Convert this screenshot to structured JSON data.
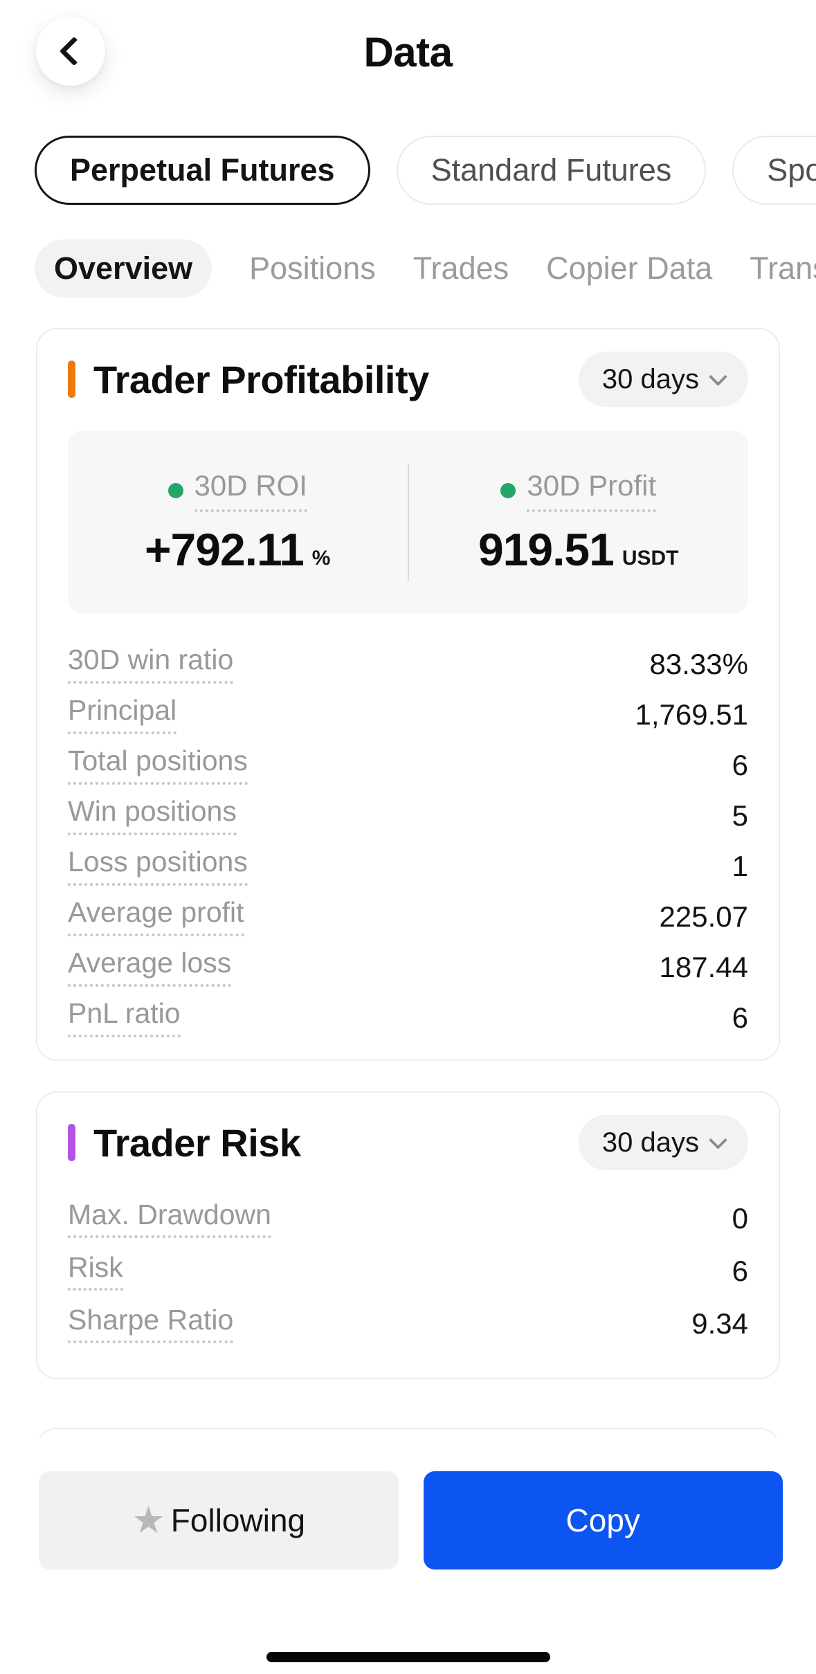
{
  "header": {
    "title": "Data"
  },
  "market_tabs": [
    {
      "label": "Perpetual Futures",
      "selected": true
    },
    {
      "label": "Standard Futures",
      "selected": false
    },
    {
      "label": "Spot Copy",
      "selected": false
    }
  ],
  "nav_tabs": [
    {
      "label": "Overview",
      "selected": true
    },
    {
      "label": "Positions",
      "selected": false
    },
    {
      "label": "Trades",
      "selected": false
    },
    {
      "label": "Copier Data",
      "selected": false
    },
    {
      "label": "Transfer",
      "selected": false
    }
  ],
  "profitability_card": {
    "title": "Trader Profitability",
    "period": "30 days",
    "accent_color": "#ED7A0E",
    "highlights": [
      {
        "label": "30D ROI",
        "value": "+792.11",
        "unit": "%"
      },
      {
        "label": "30D Profit",
        "value": "919.51",
        "unit": "USDT"
      }
    ],
    "rows": [
      {
        "label": "30D win ratio",
        "value": "83.33%"
      },
      {
        "label": "Principal",
        "value": "1,769.51"
      },
      {
        "label": "Total positions",
        "value": "6"
      },
      {
        "label": "Win positions",
        "value": "5"
      },
      {
        "label": "Loss positions",
        "value": "1"
      },
      {
        "label": "Average profit",
        "value": "225.07"
      },
      {
        "label": "Average loss",
        "value": "187.44"
      },
      {
        "label": "PnL ratio",
        "value": "6"
      }
    ]
  },
  "risk_card": {
    "title": "Trader Risk",
    "period": "30 days",
    "accent_color": "#B254E3",
    "rows": [
      {
        "label": "Max. Drawdown",
        "value": "0"
      },
      {
        "label": "Risk",
        "value": "6"
      },
      {
        "label": "Sharpe Ratio",
        "value": "9.34"
      }
    ]
  },
  "footer": {
    "follow_button": "Following",
    "copy_button": "Copy",
    "copy_color": "#0D55F2"
  },
  "colors": {
    "dot_green": "#23A566"
  }
}
